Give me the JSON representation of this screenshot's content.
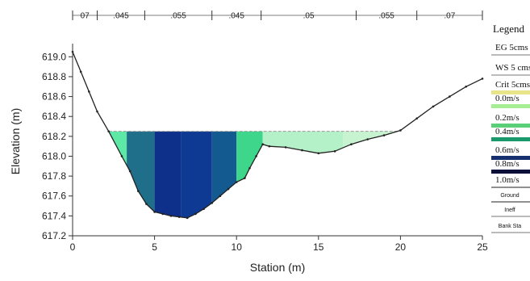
{
  "chart_data": {
    "type": "area",
    "xlabel": "Station (m)",
    "ylabel": "Elevation (m)",
    "xlim": [
      0,
      25
    ],
    "ylim": [
      617.2,
      619.1
    ],
    "xticks": [
      "0",
      "5",
      "10",
      "15",
      "20",
      "25"
    ],
    "yticks": [
      "617.2",
      "617.4",
      "617.6",
      "617.8",
      "618.0",
      "618.2",
      "618.4",
      "618.6",
      "618.8",
      "619.0"
    ],
    "water_surface": 618.25,
    "ground": {
      "x": [
        0,
        0.5,
        1.0,
        1.5,
        2.2,
        3.0,
        3.5,
        4.0,
        4.5,
        5.0,
        5.5,
        6.0,
        6.5,
        7.0,
        7.5,
        8.0,
        8.5,
        9.0,
        9.5,
        10.0,
        10.5,
        10.8,
        11.2,
        11.6,
        12.0,
        13.0,
        14.0,
        15.0,
        16.0,
        17.0,
        18.0,
        19.0,
        20.0,
        21.0,
        22.0,
        23.0,
        24.0,
        25.0
      ],
      "y": [
        619.05,
        618.85,
        618.65,
        618.45,
        618.25,
        618.0,
        617.85,
        617.65,
        617.52,
        617.44,
        617.42,
        617.4,
        617.39,
        617.38,
        617.42,
        617.47,
        617.53,
        617.6,
        617.67,
        617.74,
        617.78,
        617.88,
        618.0,
        618.12,
        618.1,
        618.09,
        618.06,
        618.03,
        618.05,
        618.12,
        618.17,
        618.21,
        618.26,
        618.38,
        618.5,
        618.6,
        618.7,
        618.78
      ]
    },
    "manning_segments": [
      {
        "label": "07",
        "from": 0,
        "to": 1.5
      },
      {
        "label": ".045",
        "from": 1.5,
        "to": 4.4
      },
      {
        "label": ".055",
        "from": 4.4,
        "to": 8.5
      },
      {
        "label": ".045",
        "from": 8.5,
        "to": 11.5
      },
      {
        "label": ".05",
        "from": 11.5,
        "to": 17.3
      },
      {
        "label": ".055",
        "from": 17.3,
        "to": 21.0
      },
      {
        "label": ".07",
        "from": 21.0,
        "to": 25.0
      }
    ],
    "velocity_zones": [
      {
        "from": 2.2,
        "to": 3.3,
        "color": "#5ee8a6"
      },
      {
        "from": 3.3,
        "to": 5.0,
        "color": "#1f6e8a"
      },
      {
        "from": 5.0,
        "to": 6.6,
        "color": "#0e2f8a"
      },
      {
        "from": 6.6,
        "to": 8.5,
        "color": "#0f3a93"
      },
      {
        "from": 8.5,
        "to": 10.0,
        "color": "#125a8f"
      },
      {
        "from": 10.0,
        "to": 11.6,
        "color": "#3ed68a"
      },
      {
        "from": 11.6,
        "to": 16.5,
        "color": "#b4f0c8"
      },
      {
        "from": 16.5,
        "to": 19.9,
        "color": "#c8f3d0"
      }
    ],
    "legend": {
      "title": "Legend",
      "placement": "right",
      "entries": [
        {
          "label": "EG  5cms",
          "type": "line",
          "color": "#777777"
        },
        {
          "label": "WS 5 cms",
          "type": "line",
          "color": "#777777"
        },
        {
          "label": "Crit 5cms",
          "type": "swatch",
          "color": "#e8e48a"
        },
        {
          "label": "0.0m/s",
          "type": "swatch",
          "color": "#a6ee94"
        },
        {
          "label": "0.2m/s",
          "type": "swatch",
          "color": "#59cf78"
        },
        {
          "label": "0.4m/s",
          "type": "swatch",
          "color": "#1a9a6c"
        },
        {
          "label": "0.6m/s",
          "type": "swatch",
          "color": "#16306f"
        },
        {
          "label": "0.8m/s",
          "type": "swatch",
          "color": "#0a0f3a"
        },
        {
          "label": "1.0m/s",
          "type": "line",
          "color": "#222222"
        },
        {
          "label": "Ground",
          "type": "line",
          "color": "#222222"
        },
        {
          "label": "Ineff",
          "type": "line",
          "color": "#777777"
        },
        {
          "label": "Bank Sta",
          "type": "line",
          "color": "#777777"
        }
      ]
    }
  }
}
